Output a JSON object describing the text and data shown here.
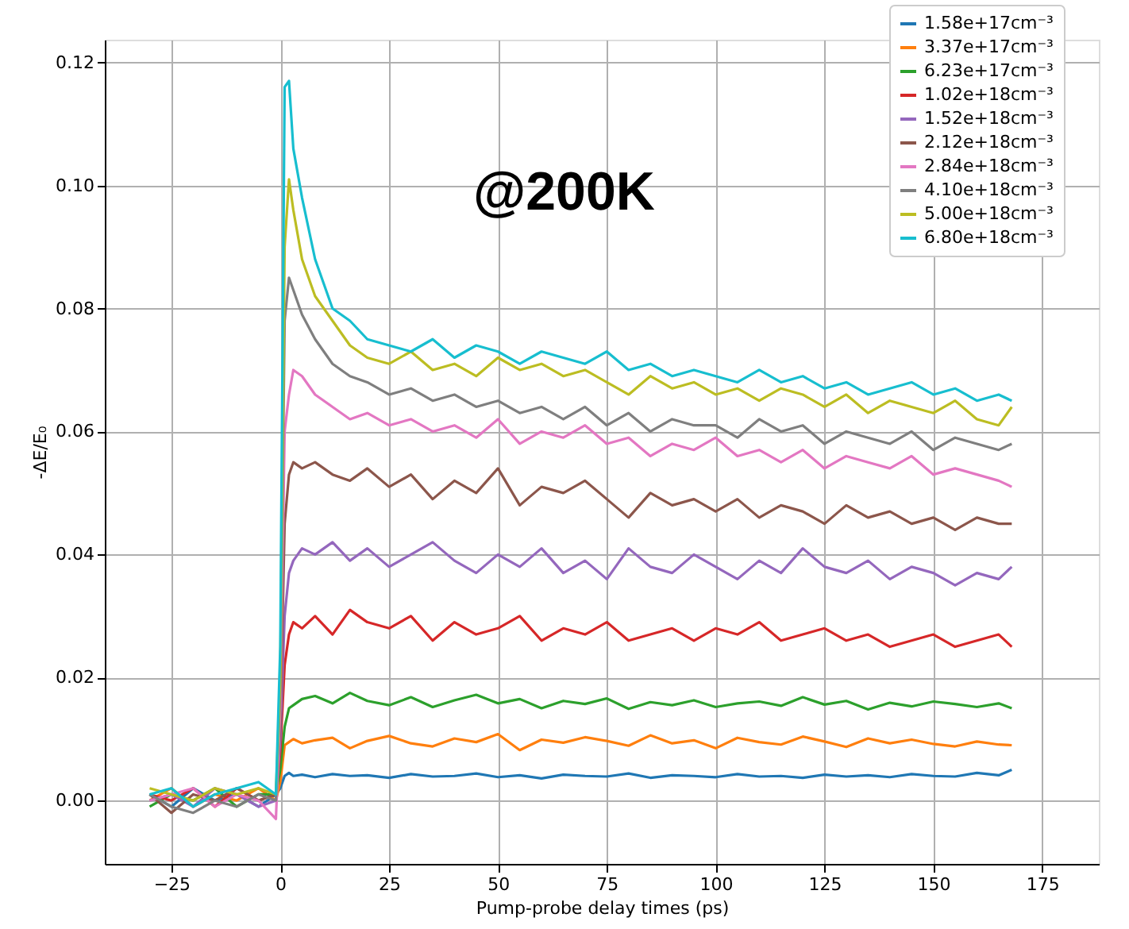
{
  "chart_data": {
    "type": "line",
    "xlabel": "Pump-probe delay times (ps)",
    "ylabel": "-ΔE/E₀",
    "annotations": [
      "@200K"
    ],
    "x": [
      -30,
      -25,
      -20,
      -15,
      -10,
      -5,
      -1,
      0,
      1,
      2,
      3,
      5,
      8,
      12,
      16,
      20,
      25,
      30,
      35,
      40,
      45,
      50,
      55,
      60,
      65,
      70,
      75,
      80,
      85,
      90,
      95,
      100,
      105,
      110,
      115,
      120,
      125,
      130,
      135,
      140,
      145,
      150,
      155,
      160,
      165,
      168
    ],
    "xlim": [
      -40.3,
      188
    ],
    "xticks": [
      -25,
      0,
      25,
      50,
      75,
      100,
      125,
      150,
      175
    ],
    "ylim": [
      -0.0103,
      0.1237
    ],
    "yticks": [
      {
        "value": 0.0,
        "label": "0.00"
      },
      {
        "value": 0.02,
        "label": "0.02"
      },
      {
        "value": 0.04,
        "label": "0.04"
      },
      {
        "value": 0.06,
        "label": "0.06"
      },
      {
        "value": 0.08,
        "label": "0.08"
      },
      {
        "value": 0.1,
        "label": "0.10"
      },
      {
        "value": 0.12,
        "label": "0.12"
      }
    ],
    "grid": true,
    "legend": "top right",
    "line_style": "solid",
    "marker": "none",
    "series": [
      {
        "name": "1.58e+17cm⁻³",
        "color": "#1f77b4",
        "values": [
          0.001,
          -0.001,
          0.002,
          0.0,
          0.001,
          -0.001,
          0.001,
          0.002,
          0.004,
          0.0045,
          0.004,
          0.0042,
          0.0038,
          0.0043,
          0.004,
          0.0041,
          0.0037,
          0.0043,
          0.0039,
          0.004,
          0.0044,
          0.0038,
          0.0041,
          0.0036,
          0.0042,
          0.004,
          0.0039,
          0.0044,
          0.0037,
          0.0041,
          0.004,
          0.0038,
          0.0043,
          0.0039,
          0.004,
          0.0037,
          0.0042,
          0.0039,
          0.0041,
          0.0038,
          0.0043,
          0.004,
          0.0039,
          0.0045,
          0.0041,
          0.005
        ]
      },
      {
        "name": "3.37e+17cm⁻³",
        "color": "#ff7f0e",
        "values": [
          0.0,
          0.002,
          -0.001,
          0.001,
          0.0,
          0.002,
          0.0,
          0.003,
          0.009,
          0.0095,
          0.01,
          0.0093,
          0.0098,
          0.0102,
          0.0085,
          0.0097,
          0.0105,
          0.0093,
          0.0088,
          0.0101,
          0.0095,
          0.0108,
          0.0082,
          0.0099,
          0.0094,
          0.0103,
          0.0097,
          0.0089,
          0.0106,
          0.0093,
          0.0098,
          0.0085,
          0.0102,
          0.0095,
          0.0091,
          0.0104,
          0.0096,
          0.0087,
          0.0101,
          0.0093,
          0.0099,
          0.0092,
          0.0088,
          0.0096,
          0.0091,
          0.009
        ]
      },
      {
        "name": "6.23e+17cm⁻³",
        "color": "#2ca02c",
        "values": [
          -0.001,
          0.001,
          0.0,
          0.002,
          -0.001,
          0.001,
          0.001,
          0.005,
          0.012,
          0.015,
          0.0155,
          0.0165,
          0.017,
          0.0158,
          0.0175,
          0.0162,
          0.0155,
          0.0168,
          0.0152,
          0.0163,
          0.0172,
          0.0158,
          0.0165,
          0.015,
          0.0162,
          0.0157,
          0.0166,
          0.0149,
          0.016,
          0.0155,
          0.0163,
          0.0152,
          0.0158,
          0.0161,
          0.0154,
          0.0168,
          0.0156,
          0.0162,
          0.0148,
          0.0159,
          0.0153,
          0.0161,
          0.0157,
          0.0152,
          0.0158,
          0.015
        ]
      },
      {
        "name": "1.02e+18cm⁻³",
        "color": "#d62728",
        "values": [
          0.001,
          0.0,
          0.002,
          -0.001,
          0.002,
          0.0,
          0.001,
          0.008,
          0.022,
          0.027,
          0.029,
          0.028,
          0.03,
          0.027,
          0.031,
          0.029,
          0.028,
          0.03,
          0.026,
          0.029,
          0.027,
          0.028,
          0.03,
          0.026,
          0.028,
          0.027,
          0.029,
          0.026,
          0.027,
          0.028,
          0.026,
          0.028,
          0.027,
          0.029,
          0.026,
          0.027,
          0.028,
          0.026,
          0.027,
          0.025,
          0.026,
          0.027,
          0.025,
          0.026,
          0.027,
          0.025
        ]
      },
      {
        "name": "1.52e+18cm⁻³",
        "color": "#9467bd",
        "values": [
          0.0,
          0.001,
          -0.001,
          0.002,
          0.001,
          -0.001,
          0.0,
          0.01,
          0.03,
          0.037,
          0.039,
          0.041,
          0.04,
          0.042,
          0.039,
          0.041,
          0.038,
          0.04,
          0.042,
          0.039,
          0.037,
          0.04,
          0.038,
          0.041,
          0.037,
          0.039,
          0.036,
          0.041,
          0.038,
          0.037,
          0.04,
          0.038,
          0.036,
          0.039,
          0.037,
          0.041,
          0.038,
          0.037,
          0.039,
          0.036,
          0.038,
          0.037,
          0.035,
          0.037,
          0.036,
          0.038
        ]
      },
      {
        "name": "2.12e+18cm⁻³",
        "color": "#8c564b",
        "values": [
          0.001,
          -0.002,
          0.001,
          0.0,
          0.002,
          0.0,
          0.001,
          0.012,
          0.045,
          0.053,
          0.055,
          0.054,
          0.055,
          0.053,
          0.052,
          0.054,
          0.051,
          0.053,
          0.049,
          0.052,
          0.05,
          0.054,
          0.048,
          0.051,
          0.05,
          0.052,
          0.049,
          0.046,
          0.05,
          0.048,
          0.049,
          0.047,
          0.049,
          0.046,
          0.048,
          0.047,
          0.045,
          0.048,
          0.046,
          0.047,
          0.045,
          0.046,
          0.044,
          0.046,
          0.045,
          0.045
        ]
      },
      {
        "name": "2.84e+18cm⁻³",
        "color": "#e377c2",
        "values": [
          0.0,
          0.001,
          0.002,
          -0.001,
          0.001,
          0.0,
          -0.003,
          0.015,
          0.06,
          0.066,
          0.07,
          0.069,
          0.066,
          0.064,
          0.062,
          0.063,
          0.061,
          0.062,
          0.06,
          0.061,
          0.059,
          0.062,
          0.058,
          0.06,
          0.059,
          0.061,
          0.058,
          0.059,
          0.056,
          0.058,
          0.057,
          0.059,
          0.056,
          0.057,
          0.055,
          0.057,
          0.054,
          0.056,
          0.055,
          0.054,
          0.056,
          0.053,
          0.054,
          0.053,
          0.052,
          0.051
        ]
      },
      {
        "name": "4.10e+18cm⁻³",
        "color": "#7f7f7f",
        "values": [
          0.001,
          -0.001,
          -0.002,
          0.0,
          -0.001,
          0.001,
          0.0,
          0.018,
          0.078,
          0.085,
          0.083,
          0.079,
          0.075,
          0.071,
          0.069,
          0.068,
          0.066,
          0.067,
          0.065,
          0.066,
          0.064,
          0.065,
          0.063,
          0.064,
          0.062,
          0.064,
          0.061,
          0.063,
          0.06,
          0.062,
          0.061,
          0.061,
          0.059,
          0.062,
          0.06,
          0.061,
          0.058,
          0.06,
          0.059,
          0.058,
          0.06,
          0.057,
          0.059,
          0.058,
          0.057,
          0.058
        ]
      },
      {
        "name": "5.00e+18cm⁻³",
        "color": "#bcbd22",
        "values": [
          0.002,
          0.001,
          0.0,
          0.002,
          0.001,
          0.002,
          0.001,
          0.02,
          0.09,
          0.101,
          0.096,
          0.088,
          0.082,
          0.078,
          0.074,
          0.072,
          0.071,
          0.073,
          0.07,
          0.071,
          0.069,
          0.072,
          0.07,
          0.071,
          0.069,
          0.07,
          0.068,
          0.066,
          0.069,
          0.067,
          0.068,
          0.066,
          0.067,
          0.065,
          0.067,
          0.066,
          0.064,
          0.066,
          0.063,
          0.065,
          0.064,
          0.063,
          0.065,
          0.062,
          0.061,
          0.064
        ]
      },
      {
        "name": "6.80e+18cm⁻³",
        "color": "#17becf",
        "values": [
          0.001,
          0.002,
          -0.001,
          0.001,
          0.002,
          0.003,
          0.001,
          0.025,
          0.116,
          0.117,
          0.106,
          0.098,
          0.088,
          0.08,
          0.078,
          0.075,
          0.074,
          0.073,
          0.075,
          0.072,
          0.074,
          0.073,
          0.071,
          0.073,
          0.072,
          0.071,
          0.073,
          0.07,
          0.071,
          0.069,
          0.07,
          0.069,
          0.068,
          0.07,
          0.068,
          0.069,
          0.067,
          0.068,
          0.066,
          0.067,
          0.068,
          0.066,
          0.067,
          0.065,
          0.066,
          0.065
        ]
      }
    ]
  }
}
